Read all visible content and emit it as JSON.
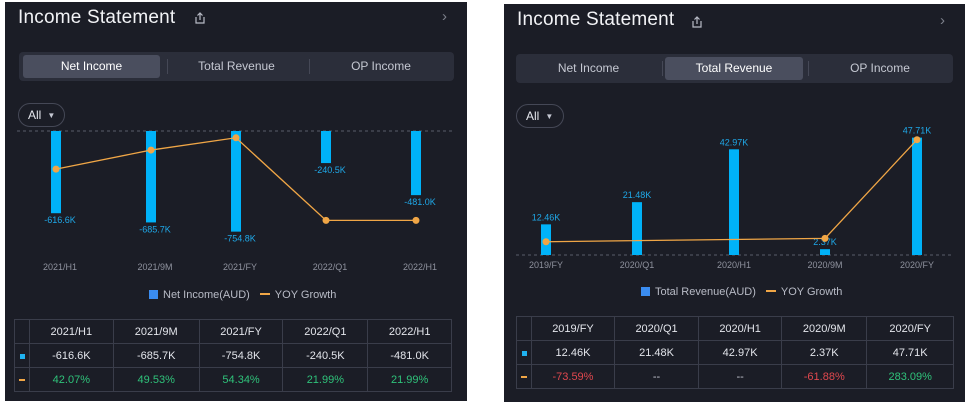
{
  "colors": {
    "bar": "#00b2f8",
    "line": "#f0a646",
    "legend_square": "#3a8cf0",
    "positive": "#2fc27a",
    "negative": "#e0484e",
    "panel_bg": "#1b1d26"
  },
  "icons": {
    "share": "share-icon",
    "chevron": "chevron-right-icon",
    "dropdown": "caret-down-icon"
  },
  "panels": [
    {
      "title": "Income Statement",
      "tabs": [
        {
          "label": "Net Income",
          "active": true
        },
        {
          "label": "Total Revenue",
          "active": false
        },
        {
          "label": "OP Income",
          "active": false
        }
      ],
      "filter": "All",
      "legend": {
        "bar": "Net Income(AUD)",
        "line": "YOY Growth"
      },
      "table": {
        "headers": [
          "2021/H1",
          "2021/9M",
          "2021/FY",
          "2022/Q1",
          "2022/H1"
        ],
        "values": [
          "-616.6K",
          "-685.7K",
          "-754.8K",
          "-240.5K",
          "-481.0K"
        ],
        "growth": [
          "42.07%",
          "49.53%",
          "54.34%",
          "21.99%",
          "21.99%"
        ],
        "growth_class": [
          "pos",
          "pos",
          "pos",
          "pos",
          "pos"
        ]
      }
    },
    {
      "title": "Income Statement",
      "tabs": [
        {
          "label": "Net Income",
          "active": false
        },
        {
          "label": "Total Revenue",
          "active": true
        },
        {
          "label": "OP Income",
          "active": false
        }
      ],
      "filter": "All",
      "legend": {
        "bar": "Total Revenue(AUD)",
        "line": "YOY Growth"
      },
      "table": {
        "headers": [
          "2019/FY",
          "2020/Q1",
          "2020/H1",
          "2020/9M",
          "2020/FY"
        ],
        "values": [
          "12.46K",
          "21.48K",
          "42.97K",
          "2.37K",
          "47.71K"
        ],
        "growth": [
          "-73.59%",
          "--",
          "--",
          "-61.88%",
          "283.09%"
        ],
        "growth_class": [
          "neg",
          "neu",
          "neu",
          "neg",
          "pos"
        ]
      }
    }
  ],
  "chart_data": [
    {
      "type": "bar",
      "categories": [
        "2021/H1",
        "2021/9M",
        "2021/FY",
        "2022/Q1",
        "2022/H1"
      ],
      "series": [
        {
          "name": "Net Income(AUD)",
          "type": "bar",
          "values": [
            -616.6,
            -685.7,
            -754.8,
            -240.5,
            -481.0
          ],
          "labels": [
            "-616.6K",
            "-685.7K",
            "-754.8K",
            "-240.5K",
            "-481.0K"
          ]
        },
        {
          "name": "YOY Growth",
          "type": "line",
          "values": [
            42.07,
            49.53,
            54.34,
            21.99,
            21.99
          ]
        }
      ],
      "ylim": [
        -900,
        0
      ],
      "growth_lim": [
        10,
        57
      ],
      "legend": "bottom-center",
      "baseline": "top"
    },
    {
      "type": "bar",
      "categories": [
        "2019/FY",
        "2020/Q1",
        "2020/H1",
        "2020/9M",
        "2020/FY"
      ],
      "series": [
        {
          "name": "Total Revenue(AUD)",
          "type": "bar",
          "values": [
            12.46,
            21.48,
            42.97,
            2.37,
            47.71
          ],
          "labels": [
            "12.46K",
            "21.48K",
            "42.97K",
            "2.37K",
            "47.71K"
          ]
        },
        {
          "name": "YOY Growth",
          "type": "line",
          "values": [
            -73.59,
            null,
            null,
            -61.88,
            283.09
          ],
          "connect": [
            [
              0,
              3
            ],
            [
              3,
              4
            ]
          ]
        }
      ],
      "ylim": [
        0,
        50
      ],
      "growth_lim": [
        -120,
        310
      ],
      "legend": "bottom-center",
      "baseline": "bottom"
    }
  ]
}
